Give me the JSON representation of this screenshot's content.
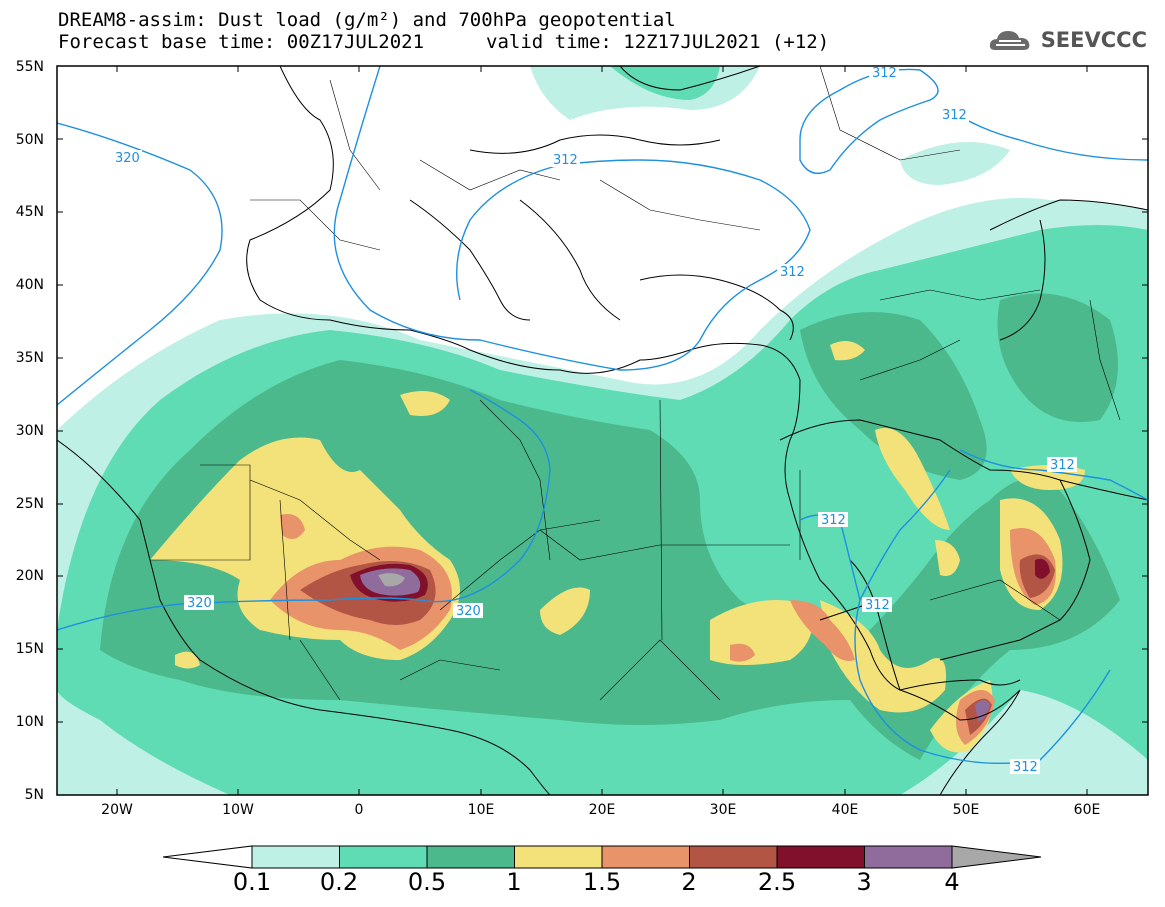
{
  "header": {
    "title_line1": "DREAM8-assim: Dust load (g/m²) and 700hPa geopotential",
    "forecast_base": "Forecast base time: 00Z17JUL2021",
    "valid_time": "valid time: 12Z17JUL2021 (+12)"
  },
  "logo": {
    "text": "SEEVCCC",
    "icon": "cloud-logo-icon"
  },
  "axes": {
    "lat_labels": [
      "55N",
      "50N",
      "45N",
      "40N",
      "35N",
      "30N",
      "25N",
      "20N",
      "15N",
      "10N",
      "5N"
    ],
    "lon_labels": [
      "20W",
      "10W",
      "0",
      "10E",
      "20E",
      "30E",
      "40E",
      "50E",
      "60E"
    ]
  },
  "contours": {
    "labels": [
      "320",
      "320",
      "320",
      "312",
      "312",
      "312",
      "312",
      "312",
      "312",
      "312",
      "312"
    ]
  },
  "colorbar": {
    "levels": [
      "0.1",
      "0.2",
      "0.5",
      "1",
      "1.5",
      "2",
      "2.5",
      "3",
      "4"
    ],
    "colors": [
      "#bff0e6",
      "#5fdcb4",
      "#4cb98c",
      "#f3e27a",
      "#e9936a",
      "#b35545",
      "#80102c",
      "#906c9c",
      "#a8a8a8"
    ],
    "contour_color": "#1e90e0"
  }
}
